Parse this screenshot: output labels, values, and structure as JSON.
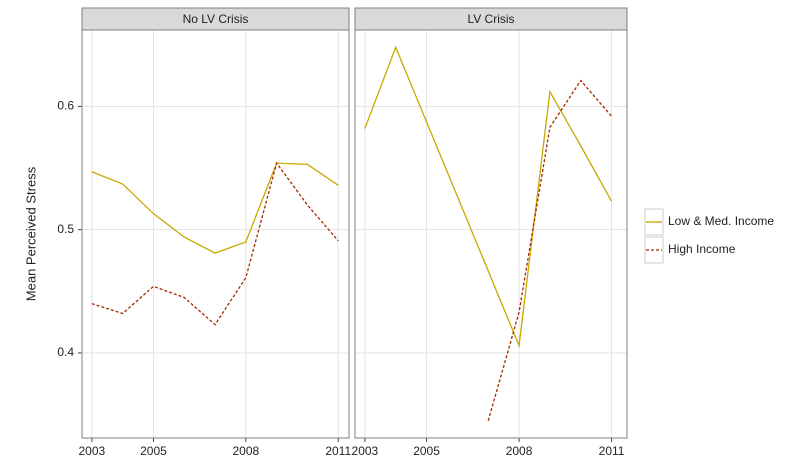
{
  "chart_data": {
    "type": "line",
    "ylabel": "Mean Perceived Stress",
    "ylim": [
      0.331,
      0.662
    ],
    "yticks": [
      0.4,
      0.5,
      0.6
    ],
    "grid": true,
    "legend": "right",
    "panels": [
      {
        "title": "No LV Crisis",
        "xlim": [
          2002.68,
          2011.35
        ],
        "xticks": [
          2003,
          2005,
          2008,
          2011
        ],
        "series": [
          {
            "name": "Low & Med. Income",
            "color": "#c9a800",
            "dash": "solid",
            "x": [
              2003,
              2004,
              2005,
              2006,
              2007,
              2008,
              2009,
              2010,
              2011
            ],
            "values": [
              0.547,
              0.537,
              0.513,
              0.494,
              0.481,
              0.49,
              0.554,
              0.553,
              0.536
            ]
          },
          {
            "name": "High Income",
            "color": "#a32a00",
            "dash": "dotted",
            "x": [
              2003,
              2004,
              2005,
              2006,
              2007,
              2008,
              2009,
              2010,
              2011
            ],
            "values": [
              0.44,
              0.432,
              0.454,
              0.445,
              0.423,
              0.461,
              0.554,
              0.52,
              0.491
            ]
          }
        ]
      },
      {
        "title": "LV Crisis",
        "xlim": [
          2002.68,
          2011.5
        ],
        "xticks": [
          2003,
          2005,
          2008,
          2011
        ],
        "series": [
          {
            "name": "Low & Med. Income",
            "color": "#c9a800",
            "dash": "solid",
            "x": [
              2003,
              2004,
              2008,
              2009,
              2010,
              2011
            ],
            "values": [
              0.582,
              0.648,
              0.406,
              0.612,
              0.568,
              0.523
            ]
          },
          {
            "name": "High Income",
            "color": "#a32a00",
            "dash": "dotted",
            "x": [
              2007,
              2008,
              2009,
              2010,
              2011
            ],
            "values": [
              0.345,
              0.433,
              0.583,
              0.621,
              0.592
            ]
          }
        ]
      }
    ]
  }
}
